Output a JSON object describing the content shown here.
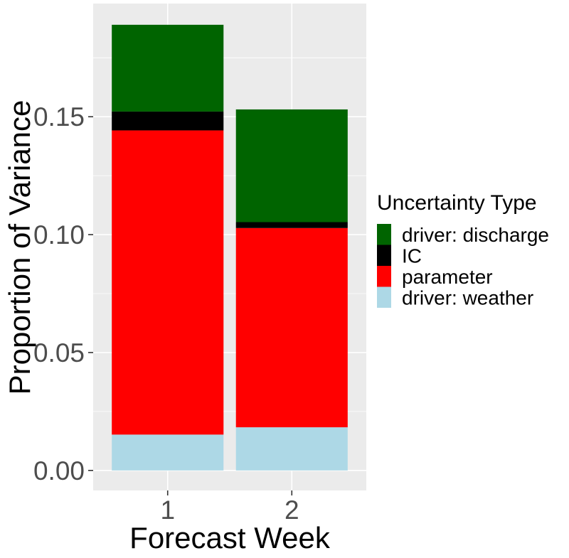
{
  "chart_data": {
    "type": "bar",
    "stacked": true,
    "categories": [
      "1",
      "2"
    ],
    "xlabel": "Forecast Week",
    "ylabel": "Proportion of Variance",
    "ylim": [
      -0.0085,
      0.198
    ],
    "yticks": [
      0.0,
      0.05,
      0.1,
      0.15
    ],
    "ytick_labels": [
      "0.00",
      "0.05",
      "0.10",
      "0.15"
    ],
    "grid": true,
    "legend_title": "Uncertainty Type",
    "legend_position": "right",
    "legend_order": [
      "driver: discharge",
      "IC",
      "parameter",
      "driver: weather"
    ],
    "series": [
      {
        "name": "driver: weather",
        "color": "#ADD8E6",
        "values": [
          0.0152,
          0.0183
        ]
      },
      {
        "name": "parameter",
        "color": "#FF0000",
        "values": [
          0.129,
          0.0845
        ]
      },
      {
        "name": "IC",
        "color": "#000000",
        "values": [
          0.008,
          0.0025
        ]
      },
      {
        "name": "driver: discharge",
        "color": "#006400",
        "values": [
          0.0368,
          0.0478
        ]
      }
    ]
  }
}
